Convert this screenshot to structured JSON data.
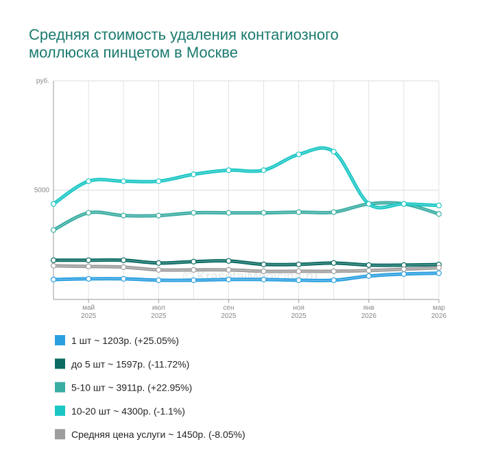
{
  "chart_data": {
    "type": "line",
    "title": "Средняя стоимость удаления контагиозного моллюска пинцетом в Москве",
    "watermark": "© KrasotaiMedicina.ru",
    "categories": [
      null,
      "май",
      null,
      "июл",
      null,
      "сен",
      null,
      "ноя",
      null,
      "янв",
      null,
      "мар"
    ],
    "category_years": [
      null,
      "2025",
      null,
      "2025",
      null,
      "2025",
      null,
      "2025",
      null,
      "2026",
      null,
      "2026"
    ],
    "ylim": [
      0,
      10000
    ],
    "yticks": [
      5000,
      {
        "value": 10000,
        "label": "руб."
      }
    ],
    "grid": true,
    "series": [
      {
        "name": "1 шт ~ 1203р. (+25.05%)",
        "color": "#2a9fe0",
        "values": [
          912,
          943,
          943,
          880,
          880,
          912,
          912,
          880,
          880,
          1069,
          1164,
          1203
        ]
      },
      {
        "name": "до 5 шт ~ 1597р. (-11.72%)",
        "color": "#0b6b63",
        "values": [
          1793,
          1793,
          1793,
          1667,
          1730,
          1761,
          1604,
          1604,
          1667,
          1572,
          1572,
          1597
        ]
      },
      {
        "name": "5-10 шт ~ 3911р. (+22.95%)",
        "color": "#3aada2",
        "values": [
          3176,
          3963,
          3837,
          3837,
          3963,
          3963,
          3963,
          3994,
          3994,
          4371,
          4371,
          3911
        ]
      },
      {
        "name": "10-20 шт ~ 4300р. (-1.1%)",
        "color": "#19c6c4",
        "values": [
          4371,
          5409,
          5409,
          5409,
          5724,
          5912,
          5912,
          6636,
          6762,
          4371,
          4371,
          4300
        ]
      },
      {
        "name": "Средняя цена услуги ~ 1450р. (-8.05%)",
        "color": "#9e9e9e",
        "values": [
          1541,
          1510,
          1478,
          1352,
          1352,
          1352,
          1289,
          1289,
          1289,
          1321,
          1384,
          1450
        ]
      }
    ]
  }
}
